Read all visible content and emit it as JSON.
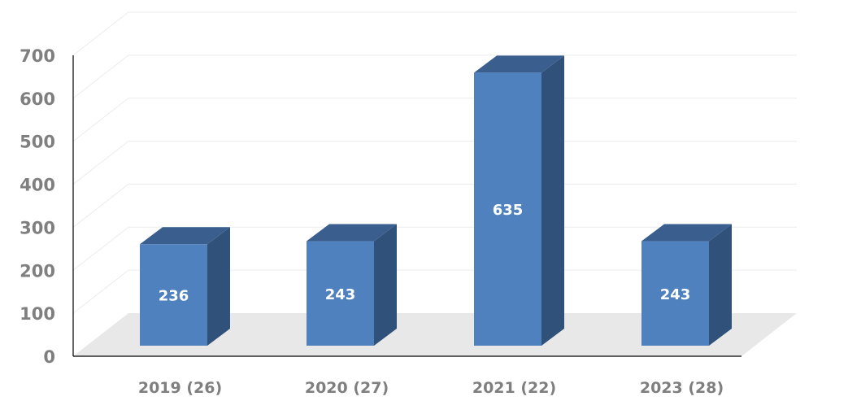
{
  "chart_data": {
    "type": "bar",
    "style": "3d-column",
    "categories": [
      "2019 (26)",
      "2020 (27)",
      "2021 (22)",
      "2023 (28)"
    ],
    "values": [
      236,
      243,
      635,
      243
    ],
    "data_labels": [
      "236",
      "243",
      "635",
      "243"
    ],
    "yticks": [
      "0",
      "100",
      "200",
      "300",
      "400",
      "500",
      "600",
      "700"
    ],
    "ylim": [
      0,
      700
    ],
    "grid": true,
    "legend": "none",
    "colors": {
      "bar_front": "#4e81bd",
      "bar_side": "#30527a",
      "bar_top": "#3a5f8f",
      "floor": "#e8e8e8",
      "gridline": "#ececec",
      "tick_text": "#7f7f7f"
    }
  }
}
